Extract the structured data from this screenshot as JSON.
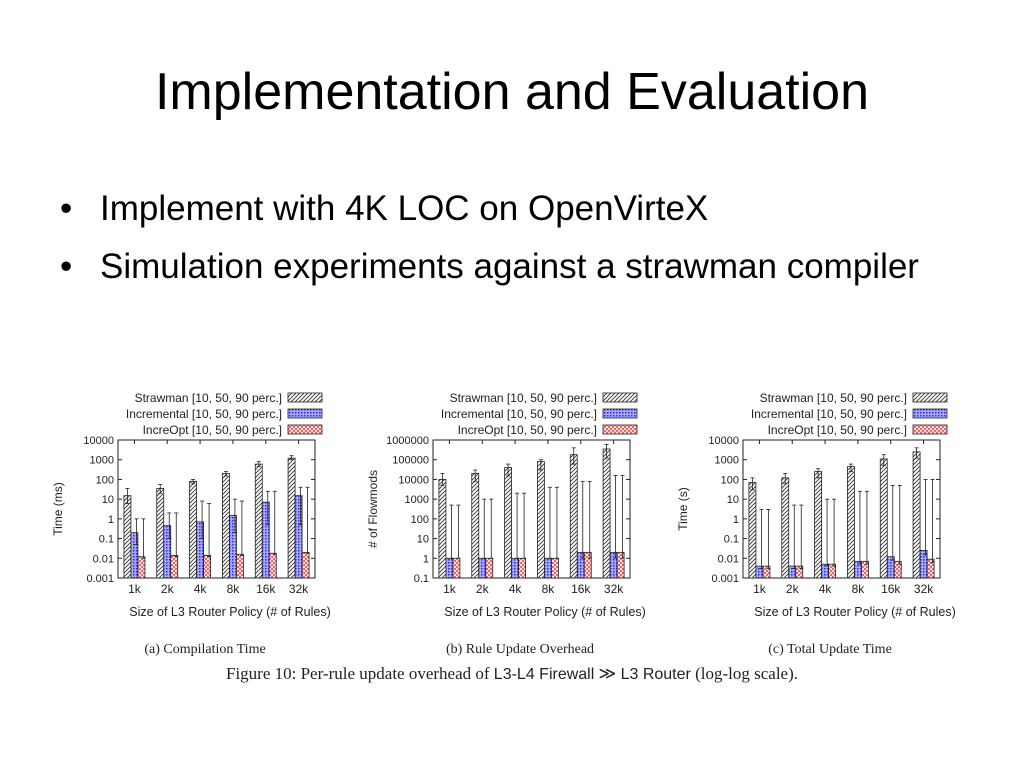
{
  "slide": {
    "title": "Implementation and Evaluation",
    "bullets": [
      "Implement with 4K LOC on OpenVirteX",
      "Simulation experiments against a strawman compiler"
    ]
  },
  "figure": {
    "caption_prefix": "Figure 10: Per-rule update overhead of",
    "caption_sans_1": "L3-L4 Firewall",
    "caption_symbol": "≫",
    "caption_sans_2": "L3 Router",
    "caption_suffix": "(log-log scale)."
  },
  "colors": {
    "strawman": "#333333",
    "incremental": "#2a2ae6",
    "increopt": "#e64b4b"
  },
  "chart_data": [
    {
      "type": "bar",
      "caption": "(a)  Compilation Time",
      "xlabel": "Size of L3 Router Policy (# of Rules)",
      "ylabel": "Time (ms)",
      "ylim": [
        0.001,
        10000
      ],
      "yscale": "log",
      "yticks": [
        "0.001",
        "0.01",
        "0.1",
        "1",
        "10",
        "100",
        "1000",
        "10000"
      ],
      "categories": [
        "1k",
        "2k",
        "4k",
        "8k",
        "16k",
        "32k"
      ],
      "series": [
        {
          "name": "Strawman [10, 50, 90 perc.]",
          "values": [
            15,
            35,
            80,
            200,
            600,
            1200
          ],
          "err_low": [
            6,
            20,
            60,
            150,
            450,
            1000
          ],
          "err_high": [
            35,
            55,
            100,
            250,
            800,
            1600
          ]
        },
        {
          "name": "Incremental [10, 50, 90 perc.]",
          "values": [
            0.2,
            0.45,
            0.7,
            1.5,
            7,
            15
          ],
          "err_low": [
            0.05,
            0.1,
            0.1,
            0.2,
            0.5,
            0.5
          ],
          "err_high": [
            1,
            2,
            8,
            10,
            25,
            40
          ]
        },
        {
          "name": "IncreOpt [10, 50, 90 perc.]",
          "values": [
            0.012,
            0.014,
            0.014,
            0.016,
            0.018,
            0.02
          ],
          "err_low": [
            0.01,
            0.012,
            0.012,
            0.014,
            0.016,
            0.018
          ],
          "err_high": [
            1,
            2,
            6,
            8,
            25,
            40
          ]
        }
      ],
      "legend": "top-right"
    },
    {
      "type": "bar",
      "caption": "(b)  Rule Update Overhead",
      "xlabel": "Size of L3 Router Policy (# of Rules)",
      "ylabel": "# of Flowmods",
      "ylim": [
        0.1,
        1000000
      ],
      "yscale": "log",
      "yticks": [
        "0.1",
        "1",
        "10",
        "100",
        "1000",
        "10000",
        "100000",
        "1000000"
      ],
      "categories": [
        "1k",
        "2k",
        "4k",
        "8k",
        "16k",
        "32k"
      ],
      "series": [
        {
          "name": "Strawman [10, 50, 90 perc.]",
          "values": [
            10000,
            20000,
            40000,
            80000,
            180000,
            350000
          ],
          "err_low": [
            5000,
            8000,
            15000,
            30000,
            60000,
            120000
          ],
          "err_high": [
            20000,
            30000,
            60000,
            100000,
            400000,
            600000
          ]
        },
        {
          "name": "Incremental [10, 50, 90 perc.]",
          "values": [
            1,
            1,
            1,
            1,
            2,
            2
          ],
          "err_low": [
            1,
            1,
            1,
            1,
            1,
            1
          ],
          "err_high": [
            500,
            1000,
            2000,
            4000,
            8000,
            16000
          ]
        },
        {
          "name": "IncreOpt [10, 50, 90 perc.]",
          "values": [
            1,
            1,
            1,
            1,
            2,
            2
          ],
          "err_low": [
            1,
            1,
            1,
            1,
            1,
            1
          ],
          "err_high": [
            500,
            1000,
            2000,
            4000,
            8000,
            16000
          ]
        }
      ],
      "legend": "top-right"
    },
    {
      "type": "bar",
      "caption": "(c)  Total Update Time",
      "xlabel": "Size of L3 Router Policy (# of Rules)",
      "ylabel": "Time (s)",
      "ylim": [
        0.001,
        10000
      ],
      "yscale": "log",
      "yticks": [
        "0.001",
        "0.01",
        "0.1",
        "1",
        "10",
        "100",
        "1000",
        "10000"
      ],
      "categories": [
        "1k",
        "2k",
        "4k",
        "8k",
        "16k",
        "32k"
      ],
      "series": [
        {
          "name": "Strawman [10, 50, 90 perc.]",
          "values": [
            70,
            120,
            250,
            450,
            1100,
            2500
          ],
          "err_low": [
            30,
            60,
            120,
            250,
            500,
            1200
          ],
          "err_high": [
            120,
            200,
            350,
            600,
            1800,
            4000
          ]
        },
        {
          "name": "Incremental [10, 50, 90 perc.]",
          "values": [
            0.004,
            0.004,
            0.005,
            0.007,
            0.012,
            0.025
          ],
          "err_low": [
            0.003,
            0.003,
            0.004,
            0.005,
            0.008,
            0.015
          ],
          "err_high": [
            3,
            5,
            10,
            25,
            50,
            100
          ]
        },
        {
          "name": "IncreOpt [10, 50, 90 perc.]",
          "values": [
            0.004,
            0.004,
            0.005,
            0.007,
            0.007,
            0.009
          ],
          "err_low": [
            0.003,
            0.003,
            0.004,
            0.005,
            0.005,
            0.006
          ],
          "err_high": [
            3,
            5,
            10,
            25,
            50,
            100
          ]
        }
      ],
      "legend": "top-right"
    }
  ]
}
